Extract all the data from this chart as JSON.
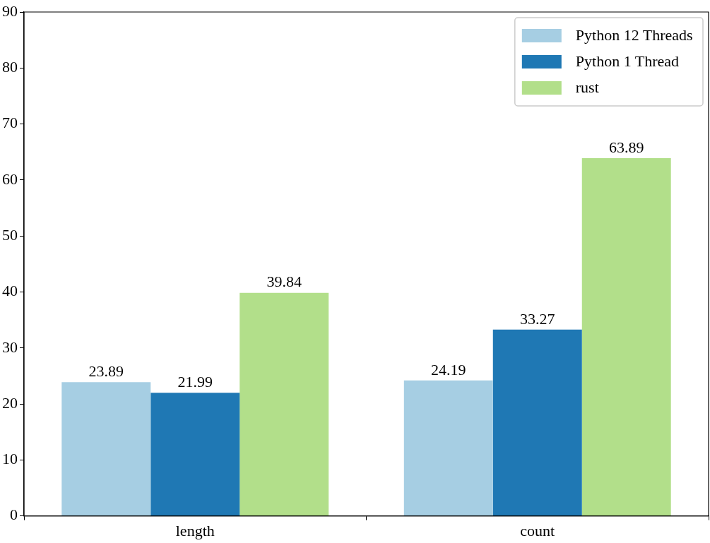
{
  "chart_data": {
    "type": "bar",
    "categories": [
      "length",
      "count"
    ],
    "series": [
      {
        "name": "Python 12 Threads",
        "color": "#a6cee3",
        "values": [
          23.89,
          24.19
        ]
      },
      {
        "name": "Python 1 Thread",
        "color": "#1f78b4",
        "values": [
          21.99,
          33.27
        ]
      },
      {
        "name": "rust",
        "color": "#b2df8a",
        "values": [
          39.84,
          63.89
        ]
      }
    ],
    "ylim": [
      0,
      90
    ],
    "yticks": [
      0,
      10,
      20,
      30,
      40,
      50,
      60,
      70,
      80,
      90
    ],
    "grid": false,
    "legend": "top right",
    "data_labels": true
  }
}
